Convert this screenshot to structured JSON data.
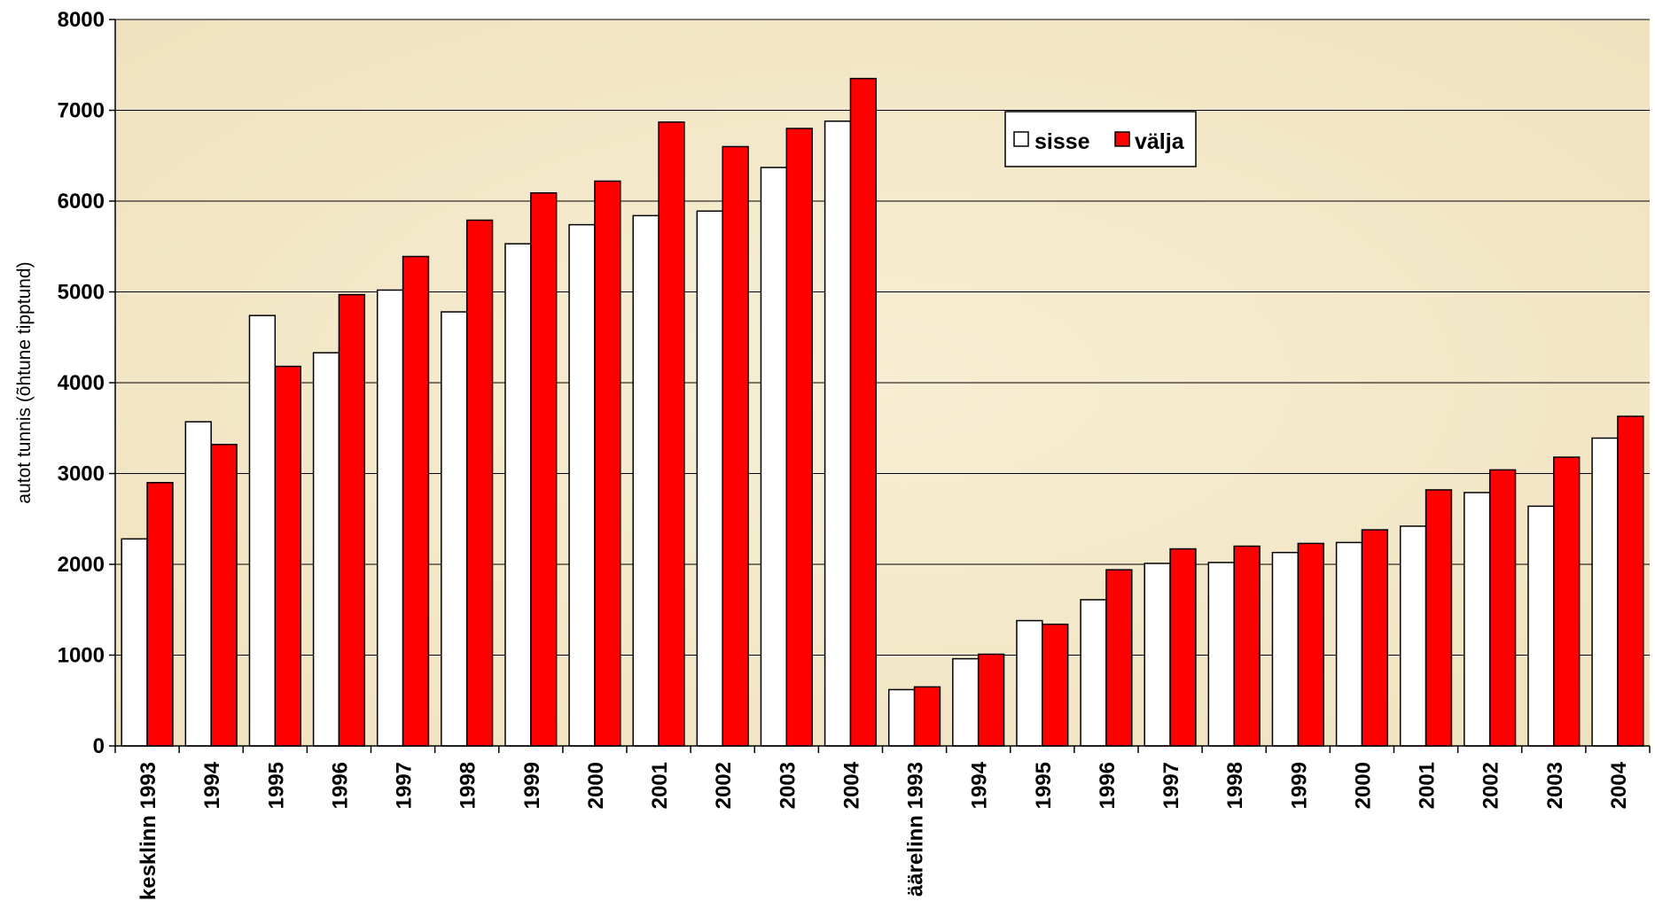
{
  "chart_data": {
    "type": "bar",
    "title": "",
    "xlabel": "",
    "ylabel": "autot tunnis (õhtune tipptund)",
    "ylim": [
      0,
      8000
    ],
    "yticks": [
      0,
      1000,
      2000,
      3000,
      4000,
      5000,
      6000,
      7000,
      8000
    ],
    "grid": true,
    "legend_position": "top-right",
    "categories": [
      "kesklinn 1993",
      "1994",
      "1995",
      "1996",
      "1997",
      "1998",
      "1999",
      "2000",
      "2001",
      "2002",
      "2003",
      "2004",
      "äärelinn 1993",
      "1994",
      "1995",
      "1996",
      "1997",
      "1998",
      "1999",
      "2000",
      "2001",
      "2002",
      "2003",
      "2004"
    ],
    "series": [
      {
        "name": "sisse",
        "color": "#ffffff",
        "values": [
          2280,
          3570,
          4740,
          4330,
          5020,
          4780,
          5530,
          5740,
          5840,
          5890,
          6370,
          6880,
          620,
          960,
          1380,
          1610,
          2010,
          2020,
          2130,
          2240,
          2420,
          2790,
          2640,
          3390
        ]
      },
      {
        "name": "välja",
        "color": "#ff0000",
        "values": [
          2900,
          3320,
          4180,
          4970,
          5390,
          5790,
          6090,
          6220,
          6870,
          6600,
          6800,
          7350,
          650,
          1010,
          1340,
          1940,
          2170,
          2200,
          2230,
          2380,
          2820,
          3040,
          3180,
          3630
        ]
      }
    ],
    "colors": {
      "plot_background": "#f3e8c8",
      "gridline": "#000000",
      "outline": "#000000"
    }
  }
}
